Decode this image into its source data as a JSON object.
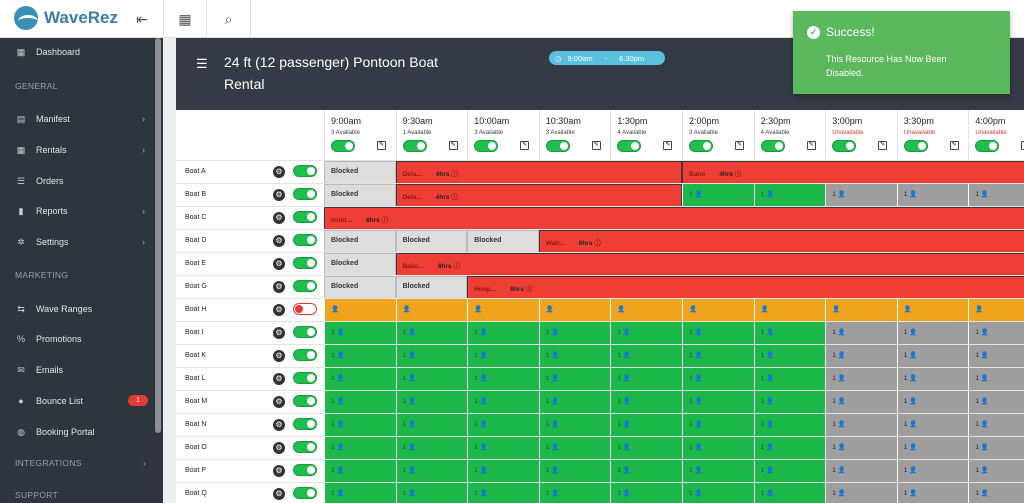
{
  "app": {
    "name": "WaveRez"
  },
  "sidebar": {
    "items": [
      {
        "label": "Dashboard",
        "icon": "dashboard-icon",
        "glyph": "▦",
        "arrow": ""
      },
      {
        "label": "Manifest",
        "icon": "manifest-icon",
        "glyph": "▤",
        "arrow": "›"
      },
      {
        "label": "Rentals",
        "icon": "rentals-icon",
        "glyph": "▦",
        "arrow": "›"
      },
      {
        "label": "Orders",
        "icon": "orders-icon",
        "glyph": "☰",
        "arrow": ""
      },
      {
        "label": "Reports",
        "icon": "reports-icon",
        "glyph": "▮",
        "arrow": "›"
      },
      {
        "label": "Settings",
        "icon": "settings-icon",
        "glyph": "✲",
        "arrow": "›"
      },
      {
        "label": "Wave Ranges",
        "icon": "wave-ranges-icon",
        "glyph": "⇆",
        "arrow": ""
      },
      {
        "label": "Promotions",
        "icon": "promotions-icon",
        "glyph": "%",
        "arrow": ""
      },
      {
        "label": "Emails",
        "icon": "emails-icon",
        "glyph": "✉",
        "arrow": ""
      },
      {
        "label": "Bounce List",
        "icon": "bounce-list-icon",
        "glyph": "●",
        "arrow": "",
        "badge": "1"
      },
      {
        "label": "Booking Portal",
        "icon": "booking-portal-icon",
        "glyph": "◍",
        "arrow": ""
      }
    ],
    "sections": {
      "general": "GENERAL",
      "marketing": "MARKETING",
      "integrations": "INTEGRATIONS",
      "integrations_arrow": "›",
      "support": "SUPPORT"
    }
  },
  "header": {
    "title": "24 ft (12 passenger) Pontoon Boat Rental",
    "time_start": "9:00am",
    "time_sep": "-",
    "time_end": "6:30pm"
  },
  "columns": [
    {
      "time": "9:00am",
      "avail": "3 Available"
    },
    {
      "time": "9:30am",
      "avail": "1 Available"
    },
    {
      "time": "10:00am",
      "avail": "3 Available"
    },
    {
      "time": "10:30am",
      "avail": "3 Available"
    },
    {
      "time": "1:30pm",
      "avail": "4 Available"
    },
    {
      "time": "2:00pm",
      "avail": "3 Available"
    },
    {
      "time": "2:30pm",
      "avail": "4 Available"
    },
    {
      "time": "3:00pm",
      "avail": "Unavailable"
    },
    {
      "time": "3:30pm",
      "avail": "Unavailable"
    },
    {
      "time": "4:00pm",
      "avail": "Unavailable"
    },
    {
      "time": "4:30",
      "avail": "Unavailable"
    }
  ],
  "cell_glyphs": {
    "count": "1",
    "person": "👤",
    "blank_person": "👤",
    "edit": "✎",
    "gear": "⚙"
  },
  "rows": [
    {
      "name": "Boat A",
      "enabled": true,
      "cells": [
        {
          "kind": "blocked",
          "label": "Blocked",
          "span": 1
        },
        {
          "kind": "booking",
          "label": "Dela...",
          "duration": "4hrs",
          "span": 4
        },
        {
          "kind": "booking",
          "label": "Bano",
          "duration": "4hrs",
          "span": 6
        }
      ]
    },
    {
      "name": "Boat B",
      "enabled": true,
      "cells": [
        {
          "kind": "blocked",
          "label": "Blocked",
          "span": 1
        },
        {
          "kind": "booking",
          "label": "Dela...",
          "duration": "4hrs",
          "span": 4
        },
        {
          "kind": "green",
          "label": "1",
          "span": 1
        },
        {
          "kind": "green",
          "label": "1",
          "span": 1
        },
        {
          "kind": "grey",
          "label": "1",
          "span": 1
        },
        {
          "kind": "grey",
          "label": "1",
          "span": 1
        },
        {
          "kind": "grey",
          "label": "1",
          "span": 1
        },
        {
          "kind": "grey",
          "label": "1",
          "span": 1
        }
      ]
    },
    {
      "name": "Boat C",
      "enabled": true,
      "cells": [
        {
          "kind": "booking",
          "label": "midd...",
          "duration": "8hrs",
          "span": 11
        }
      ]
    },
    {
      "name": "Boat D",
      "enabled": true,
      "cells": [
        {
          "kind": "blocked",
          "label": "Blocked",
          "span": 1
        },
        {
          "kind": "blocked",
          "label": "Blocked",
          "span": 1
        },
        {
          "kind": "blocked",
          "label": "Blocked",
          "span": 1
        },
        {
          "kind": "booking",
          "label": "Walt...",
          "duration": "8hrs",
          "span": 8
        }
      ]
    },
    {
      "name": "Boat E",
      "enabled": true,
      "cells": [
        {
          "kind": "blocked",
          "label": "Blocked",
          "span": 1
        },
        {
          "kind": "booking",
          "label": "Babc...",
          "duration": "8hrs",
          "span": 10
        }
      ]
    },
    {
      "name": "Boat G",
      "enabled": true,
      "cells": [
        {
          "kind": "blocked",
          "label": "Blocked",
          "span": 1
        },
        {
          "kind": "blocked",
          "label": "Blocked",
          "span": 1
        },
        {
          "kind": "booking",
          "label": "Hoop...",
          "duration": "8hrs",
          "span": 9
        }
      ]
    },
    {
      "name": "Boat H",
      "enabled": false,
      "fill": "yellow"
    },
    {
      "name": "Boat I",
      "enabled": true,
      "fill": "mixed"
    },
    {
      "name": "Boat K",
      "enabled": true,
      "fill": "mixed"
    },
    {
      "name": "Boat L",
      "enabled": true,
      "fill": "mixed"
    },
    {
      "name": "Boat M",
      "enabled": true,
      "fill": "mixed"
    },
    {
      "name": "Boat N",
      "enabled": true,
      "fill": "mixed"
    },
    {
      "name": "Boat O",
      "enabled": true,
      "fill": "mixed"
    },
    {
      "name": "Boat P",
      "enabled": true,
      "fill": "mixed"
    },
    {
      "name": "Boat Q",
      "enabled": true,
      "fill": "mixed"
    }
  ],
  "toast": {
    "title": "Success!",
    "message": "This Resource Has Now Been Disabled."
  },
  "colors": {
    "green": "#1cb84a",
    "red": "#ef3e35",
    "yellow": "#f0a31d",
    "grey": "#9e9e9e",
    "toast": "#5cb85c"
  }
}
